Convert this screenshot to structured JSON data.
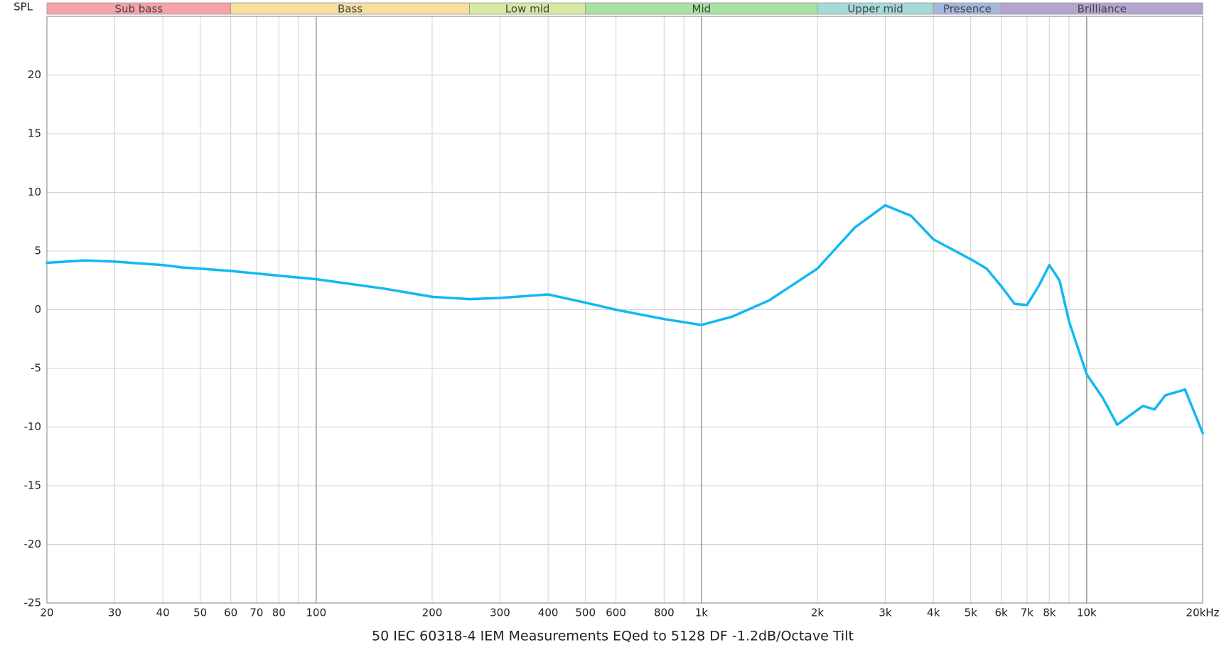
{
  "chart_data": {
    "type": "line",
    "y_axis_title": "SPL",
    "x_axis_title": "50 IEC 60318-4 IEM Measurements EQed to 5128 DF -1.2dB/Octave Tilt",
    "log_x": true,
    "grid": true,
    "xlim": [
      20,
      20000
    ],
    "ylim": [
      -25,
      25
    ],
    "yticks": [
      -25,
      -20,
      -15,
      -10,
      -5,
      0,
      5,
      10,
      15,
      20
    ],
    "xticks": [
      20,
      30,
      40,
      50,
      60,
      70,
      80,
      100,
      200,
      300,
      400,
      500,
      600,
      800,
      {
        "value": 1000,
        "label": "1k"
      },
      {
        "value": 2000,
        "label": "2k"
      },
      {
        "value": 3000,
        "label": "3k"
      },
      {
        "value": 4000,
        "label": "4k"
      },
      {
        "value": 5000,
        "label": "5k"
      },
      {
        "value": 6000,
        "label": "6k"
      },
      {
        "value": 7000,
        "label": "7k"
      },
      {
        "value": 8000,
        "label": "8k"
      },
      {
        "value": 10000,
        "label": "10k"
      },
      {
        "value": 20000,
        "label": "20kHz"
      }
    ],
    "xgrid_minor": [
      90,
      900,
      9000
    ],
    "bands": [
      {
        "label": "Sub bass",
        "from": 20,
        "to": 60,
        "color": "#f5a3a8"
      },
      {
        "label": "Bass",
        "from": 60,
        "to": 250,
        "color": "#f6df9f"
      },
      {
        "label": "Low mid",
        "from": 250,
        "to": 500,
        "color": "#d7e9a2"
      },
      {
        "label": "Mid",
        "from": 500,
        "to": 2000,
        "color": "#a7e2a1"
      },
      {
        "label": "Upper mid",
        "from": 2000,
        "to": 4000,
        "color": "#a4d9d6"
      },
      {
        "label": "Presence",
        "from": 4000,
        "to": 6000,
        "color": "#a6b7de"
      },
      {
        "label": "Brilliance",
        "from": 6000,
        "to": 20000,
        "color": "#b5a4d0"
      }
    ],
    "x": [
      20,
      25,
      30,
      40,
      45,
      50,
      60,
      80,
      100,
      150,
      200,
      250,
      300,
      400,
      500,
      600,
      800,
      1000,
      1200,
      1500,
      2000,
      2500,
      3000,
      3500,
      4000,
      5000,
      5500,
      6000,
      6500,
      7000,
      7500,
      8000,
      8500,
      9000,
      10000,
      11000,
      12000,
      14000,
      15000,
      16000,
      18000,
      20000
    ],
    "series": [
      {
        "color": "#12b8f2",
        "values": [
          4.0,
          4.2,
          4.1,
          3.8,
          3.6,
          3.5,
          3.3,
          2.9,
          2.6,
          1.8,
          1.1,
          0.9,
          1.0,
          1.3,
          0.6,
          0.0,
          -0.8,
          -1.3,
          -0.6,
          0.8,
          3.5,
          7.0,
          8.9,
          8.0,
          6.0,
          4.3,
          3.5,
          2.0,
          0.5,
          0.4,
          2.0,
          3.8,
          2.5,
          -1.0,
          -5.5,
          -7.5,
          -9.8,
          -8.2,
          -8.5,
          -7.3,
          -6.8,
          -10.5
        ]
      }
    ]
  }
}
